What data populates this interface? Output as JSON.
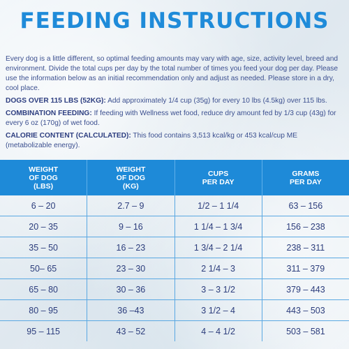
{
  "title": "FEEDING INSTRUCTIONS",
  "intro": "Every dog is a little different, so optimal feeding amounts may vary with age, size, activity level, breed and environment. Divide the total cups per day by the total number of times you feed your dog per day. Please use the information below as an initial recommendation only and adjust as needed. Please store in a dry, cool place.",
  "dogs_over": {
    "label": "DOGS OVER 115 LBS (52KG):",
    "text": " Add approximately 1/4 cup (35g) for every 10 lbs (4.5kg) over 115 lbs."
  },
  "combination": {
    "label": "COMBINATION FEEDING:",
    "text": " If feeding with Wellness wet food, reduce dry amount fed by 1/3 cup (43g) for every 6 oz (170g) of wet food."
  },
  "calorie": {
    "label": "CALORIE CONTENT (CALCULATED):",
    "text": " This food contains 3,513 kcal/kg or 453 kcal/cup ME (metabolizable energy)."
  },
  "table": {
    "headers": [
      "WEIGHT\nOF DOG\n(LBS)",
      "WEIGHT\nOF DOG\n(KG)",
      "CUPS\nPER DAY",
      "GRAMS\nPER DAY"
    ],
    "rows": [
      [
        "6 – 20",
        "2.7 – 9",
        "1/2 – 1 1/4",
        "63 – 156"
      ],
      [
        "20 – 35",
        "9 – 16",
        "1 1/4 – 1 3/4",
        "156 – 238"
      ],
      [
        "35 – 50",
        "16 – 23",
        "1 3/4 – 2 1/4",
        "238 – 311"
      ],
      [
        "50– 65",
        "23 – 30",
        "2 1/4 – 3",
        "311 – 379"
      ],
      [
        "65 – 80",
        "30 – 36",
        "3 – 3 1/2",
        "379 – 443"
      ],
      [
        "80 – 95",
        "36 –43",
        "3 1/2 – 4",
        "443 – 503"
      ],
      [
        "95 – 115",
        "43 – 52",
        "4 – 4 1/2",
        "503 – 581"
      ]
    ]
  }
}
